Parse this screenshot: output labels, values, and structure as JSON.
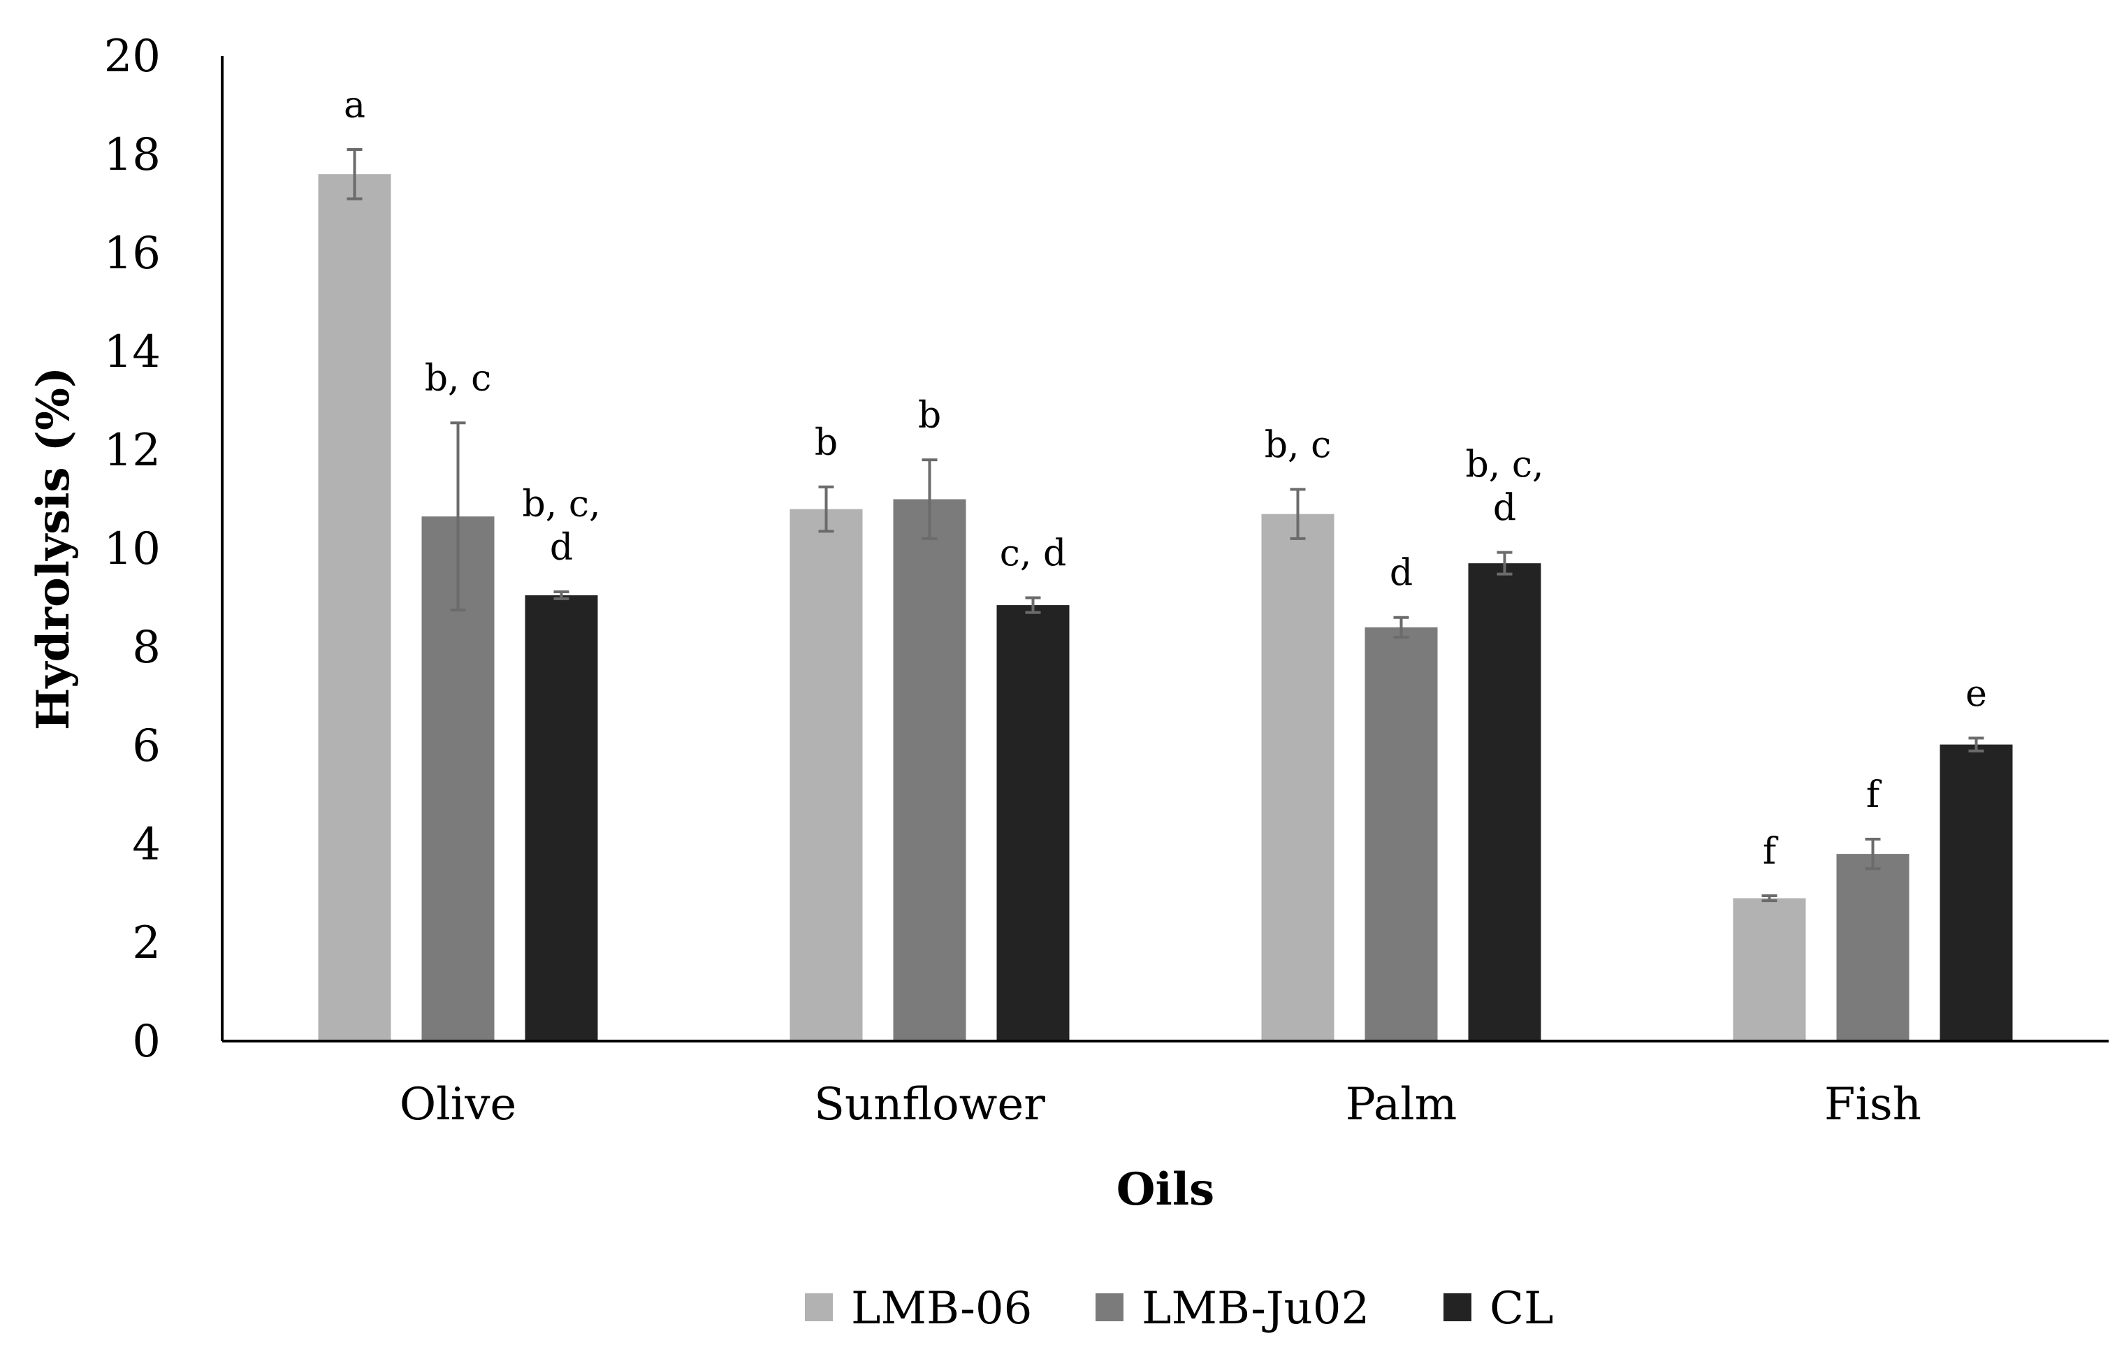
{
  "chart_data": {
    "type": "bar",
    "title": "",
    "xlabel": "Oils",
    "ylabel": "Hydrolysis (%)",
    "ylim": [
      0,
      20
    ],
    "yticks": [
      0,
      2,
      4,
      6,
      8,
      10,
      12,
      14,
      16,
      18,
      20
    ],
    "grid": false,
    "legend_position": "bottom-center",
    "categories": [
      "Olive",
      "Sunflower",
      "Palm",
      "Fish"
    ],
    "series": [
      {
        "name": "LMB-06",
        "color": "#b2b2b2",
        "values": [
          17.6,
          10.8,
          10.7,
          2.9
        ],
        "errors": [
          0.5,
          0.45,
          0.5,
          0.05
        ],
        "labels": [
          [
            "a"
          ],
          [
            "b"
          ],
          [
            "b, c"
          ],
          [
            "f"
          ]
        ]
      },
      {
        "name": "LMB-Ju02",
        "color": "#7b7b7b",
        "values": [
          10.65,
          11.0,
          8.4,
          3.8
        ],
        "errors": [
          1.9,
          0.8,
          0.2,
          0.3
        ],
        "labels": [
          [
            "b, c"
          ],
          [
            "b"
          ],
          [
            "d"
          ],
          [
            "f"
          ]
        ]
      },
      {
        "name": "CL",
        "color": "#232323",
        "values": [
          9.05,
          8.85,
          9.7,
          6.02
        ],
        "errors": [
          0.07,
          0.15,
          0.22,
          0.13
        ],
        "labels": [
          [
            "b, c,",
            "d"
          ],
          [
            "c, d"
          ],
          [
            "b, c,",
            "d"
          ],
          [
            "e"
          ]
        ]
      }
    ]
  }
}
